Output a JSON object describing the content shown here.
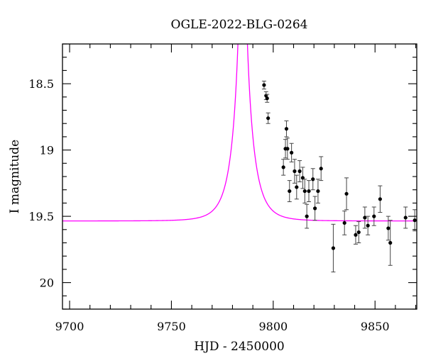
{
  "chart_data": {
    "type": "scatter",
    "title": "OGLE-2022-BLG-0264",
    "xlabel": "HJD - 2450000",
    "ylabel": "I magnitude",
    "xlim": [
      9696.5,
      9870.5
    ],
    "ylim": [
      18.2,
      20.2
    ],
    "y_inverted": true,
    "xticks": [
      9700,
      9750,
      9800,
      9850
    ],
    "yticks": [
      18.5,
      19,
      19.5,
      20
    ],
    "xtick_labels": [
      "9700",
      "9750",
      "9800",
      "9850"
    ],
    "ytick_labels": [
      "18.5",
      "19",
      "19.5",
      "20"
    ],
    "x_minor_step": 10,
    "y_minor_step": 0.1,
    "grid": false,
    "colors": {
      "model": "#ff00ff",
      "points": "#000000"
    },
    "series": [
      {
        "kind": "points_with_errorbars",
        "points": [
          {
            "x": 9795.5,
            "y": 18.51,
            "err": 0.03
          },
          {
            "x": 9796.5,
            "y": 18.59,
            "err": 0.03
          },
          {
            "x": 9797.0,
            "y": 18.61,
            "err": 0.03
          },
          {
            "x": 9797.5,
            "y": 18.76,
            "err": 0.04
          },
          {
            "x": 9805.0,
            "y": 19.13,
            "err": 0.06
          },
          {
            "x": 9806.0,
            "y": 18.99,
            "err": 0.07
          },
          {
            "x": 9806.5,
            "y": 18.84,
            "err": 0.06
          },
          {
            "x": 9807.0,
            "y": 18.99,
            "err": 0.08
          },
          {
            "x": 9808.0,
            "y": 19.31,
            "err": 0.08
          },
          {
            "x": 9809.0,
            "y": 19.02,
            "err": 0.07
          },
          {
            "x": 9810.5,
            "y": 19.16,
            "err": 0.09
          },
          {
            "x": 9811.5,
            "y": 19.28,
            "err": 0.09
          },
          {
            "x": 9813.0,
            "y": 19.16,
            "err": 0.08
          },
          {
            "x": 9814.5,
            "y": 19.21,
            "err": 0.08
          },
          {
            "x": 9815.5,
            "y": 19.31,
            "err": 0.09
          },
          {
            "x": 9816.5,
            "y": 19.5,
            "err": 0.09
          },
          {
            "x": 9817.5,
            "y": 19.31,
            "err": 0.08
          },
          {
            "x": 9819.5,
            "y": 19.22,
            "err": 0.08
          },
          {
            "x": 9820.5,
            "y": 19.44,
            "err": 0.09
          },
          {
            "x": 9822.0,
            "y": 19.31,
            "err": 0.09
          },
          {
            "x": 9823.5,
            "y": 19.14,
            "err": 0.09
          },
          {
            "x": 9829.5,
            "y": 19.74,
            "err": 0.18
          },
          {
            "x": 9835.0,
            "y": 19.55,
            "err": 0.09
          },
          {
            "x": 9836.0,
            "y": 19.33,
            "err": 0.12
          },
          {
            "x": 9840.5,
            "y": 19.64,
            "err": 0.07
          },
          {
            "x": 9842.0,
            "y": 19.62,
            "err": 0.08
          },
          {
            "x": 9845.0,
            "y": 19.51,
            "err": 0.08
          },
          {
            "x": 9846.5,
            "y": 19.57,
            "err": 0.07
          },
          {
            "x": 9849.5,
            "y": 19.5,
            "err": 0.07
          },
          {
            "x": 9852.5,
            "y": 19.37,
            "err": 0.1
          },
          {
            "x": 9856.5,
            "y": 19.59,
            "err": 0.09
          },
          {
            "x": 9857.5,
            "y": 19.7,
            "err": 0.17
          },
          {
            "x": 9865.0,
            "y": 19.51,
            "err": 0.08
          },
          {
            "x": 9869.5,
            "y": 19.53,
            "err": 0.08
          }
        ]
      },
      {
        "kind": "model_curve",
        "model": {
          "t0": 9785.0,
          "tE": 8.0,
          "u0": 0.045,
          "base_mag": 19.535,
          "fs": 0.97
        }
      }
    ]
  }
}
